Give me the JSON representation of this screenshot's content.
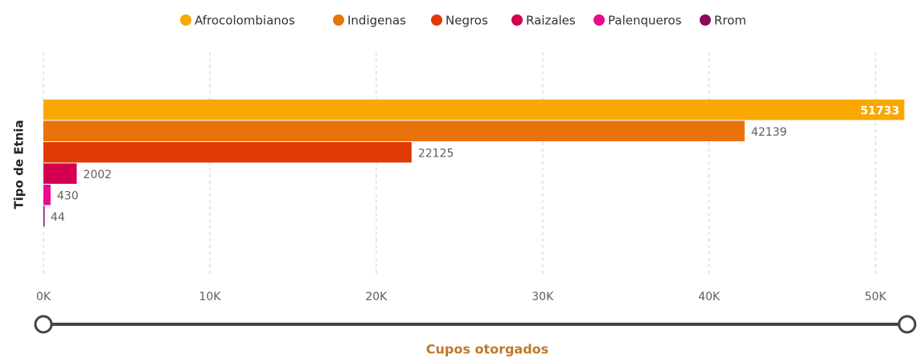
{
  "chart_data": {
    "type": "hbar",
    "categories": [
      null
    ],
    "series": [
      {
        "name": "Afrocolombianos",
        "color": "#f9a800",
        "values": [
          51733
        ]
      },
      {
        "name": "Indigenas",
        "color": "#e8730b",
        "values": [
          42139
        ]
      },
      {
        "name": "Negros",
        "color": "#e03a06",
        "values": [
          22125
        ]
      },
      {
        "name": "Raizales",
        "color": "#d3004f",
        "values": [
          2002
        ]
      },
      {
        "name": "Palenqueros",
        "color": "#ea0a8f",
        "values": [
          430
        ]
      },
      {
        "name": "Rrom",
        "color": "#8c0a5c",
        "values": [
          44
        ]
      }
    ],
    "xlim": [
      0,
      52000
    ],
    "xticks": [
      {
        "value": 0,
        "label": "0K"
      },
      {
        "value": 10000,
        "label": "10K"
      },
      {
        "value": 20000,
        "label": "20K"
      },
      {
        "value": 30000,
        "label": "30K"
      },
      {
        "value": 40000,
        "label": "40K"
      },
      {
        "value": 50000,
        "label": "50K"
      }
    ],
    "xlabel": "Cupos otorgados",
    "ylabel": "Tipo de Etnia",
    "grid": true,
    "legend": "top"
  }
}
